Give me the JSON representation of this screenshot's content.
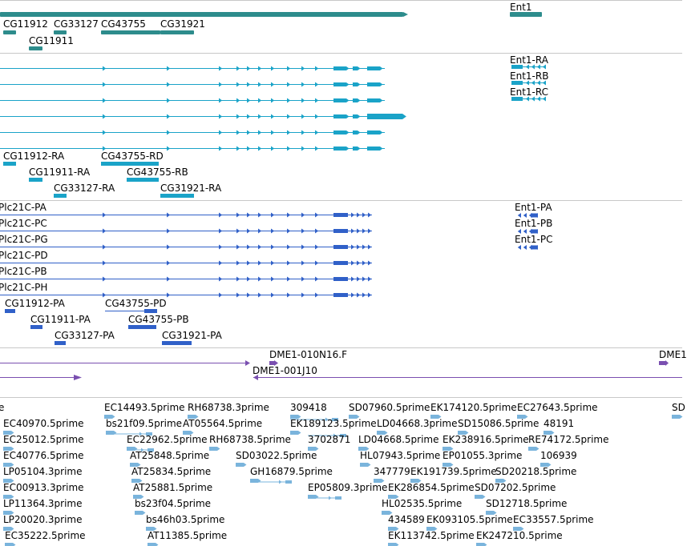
{
  "colors": {
    "gene": "#2d8c8c",
    "mrna": "#1aa3c8",
    "protein": "#3060c8",
    "clone": "#7a4fb0",
    "est": "#7ab4dc",
    "divider": "#c8c8c8"
  },
  "tracks": {
    "genes": {
      "items": [
        {
          "label": "CG11912"
        },
        {
          "label": "CG33127"
        },
        {
          "label": "CG43755"
        },
        {
          "label": "CG31921"
        },
        {
          "label": "CG11911"
        },
        {
          "label": "Ent1"
        }
      ]
    },
    "transcripts": {
      "items": [
        {
          "label": "Ent1-RA"
        },
        {
          "label": "Ent1-RB"
        },
        {
          "label": "Ent1-RC"
        },
        {
          "label": "CG11912-RA"
        },
        {
          "label": "CG43755-RD"
        },
        {
          "label": "CG11911-RA"
        },
        {
          "label": "CG43755-RB"
        },
        {
          "label": "CG33127-RA"
        },
        {
          "label": "CG31921-RA"
        }
      ]
    },
    "proteins": {
      "items": [
        {
          "label": "Plc21C-PA"
        },
        {
          "label": "Plc21C-PC"
        },
        {
          "label": "Plc21C-PG"
        },
        {
          "label": "Plc21C-PD"
        },
        {
          "label": "Plc21C-PB"
        },
        {
          "label": "Plc21C-PH"
        },
        {
          "label": "Ent1-PA"
        },
        {
          "label": "Ent1-PB"
        },
        {
          "label": "Ent1-PC"
        },
        {
          "label": "CG11912-PA"
        },
        {
          "label": "CG43755-PD"
        },
        {
          "label": "CG11911-PA"
        },
        {
          "label": "CG43755-PB"
        },
        {
          "label": "CG33127-PA"
        },
        {
          "label": "CG31921-PA"
        }
      ]
    },
    "clones": {
      "items": [
        {
          "label": "DME1-010N16.F"
        },
        {
          "label": "DME1-001J10"
        },
        {
          "label": "DME1"
        }
      ]
    },
    "ests": {
      "items": [
        {
          "label": "e"
        },
        {
          "label": "EC14493.5prime"
        },
        {
          "label": "RH68738.3prime"
        },
        {
          "label": "309418"
        },
        {
          "label": "SD07960.5prime"
        },
        {
          "label": "EK174120.5prime"
        },
        {
          "label": "EC27643.5prime"
        },
        {
          "label": "SD"
        },
        {
          "label": "EC40970.5prime"
        },
        {
          "label": "bs21f09.5prime"
        },
        {
          "label": "AT05564.5prime"
        },
        {
          "label": "EK189123.5prime"
        },
        {
          "label": "LD04668.3prime"
        },
        {
          "label": "SD15086.5prime"
        },
        {
          "label": "48191"
        },
        {
          "label": "EC25012.5prime"
        },
        {
          "label": "EC22962.5prime"
        },
        {
          "label": "RH68738.5prime"
        },
        {
          "label": "3702871"
        },
        {
          "label": "LD04668.5prime"
        },
        {
          "label": "EK238916.5prime"
        },
        {
          "label": "RE74172.5prime"
        },
        {
          "label": "EC40776.5prime"
        },
        {
          "label": "AT25848.5prime"
        },
        {
          "label": "SD03022.5prime"
        },
        {
          "label": "HL07943.5prime"
        },
        {
          "label": "EP01055.3prime"
        },
        {
          "label": "106939"
        },
        {
          "label": "LP05104.3prime"
        },
        {
          "label": "AT25834.5prime"
        },
        {
          "label": "GH16879.5prime"
        },
        {
          "label": "347779"
        },
        {
          "label": "EK191739.5prime"
        },
        {
          "label": "SD20218.5prime"
        },
        {
          "label": "EC00913.3prime"
        },
        {
          "label": "AT25881.5prime"
        },
        {
          "label": "EP05809.3prime"
        },
        {
          "label": "EK286854.5prime"
        },
        {
          "label": "SD07202.5prime"
        },
        {
          "label": "LP11364.3prime"
        },
        {
          "label": "bs23f04.5prime"
        },
        {
          "label": "HL02535.5prime"
        },
        {
          "label": "SD12718.5prime"
        },
        {
          "label": "LP20020.3prime"
        },
        {
          "label": "bs46h03.5prime"
        },
        {
          "label": "434589"
        },
        {
          "label": "EK093105.5prime"
        },
        {
          "label": "EC33557.5prime"
        },
        {
          "label": "EC35222.5prime"
        },
        {
          "label": "AT11385.5prime"
        },
        {
          "label": "EK113742.5prime"
        },
        {
          "label": "EK247210.5prime"
        }
      ]
    }
  }
}
